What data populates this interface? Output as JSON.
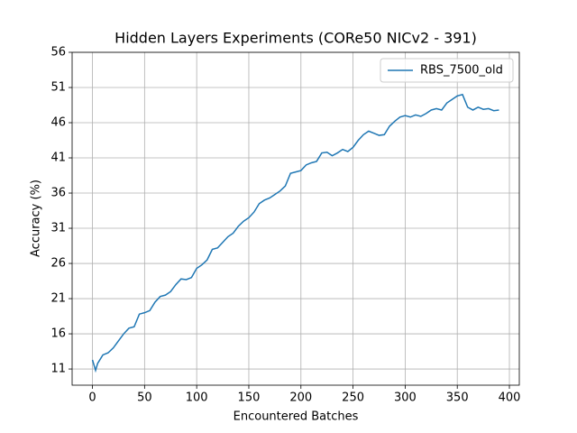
{
  "chart_data": {
    "type": "line",
    "title": "Hidden Layers Experiments (CORe50 NICv2 - 391)",
    "xlabel": "Encountered Batches",
    "ylabel": "Accuracy (%)",
    "x": [
      0,
      3,
      5,
      10,
      15,
      20,
      25,
      30,
      35,
      40,
      45,
      50,
      55,
      60,
      65,
      70,
      75,
      80,
      85,
      90,
      95,
      100,
      105,
      110,
      115,
      120,
      125,
      130,
      135,
      140,
      145,
      150,
      155,
      160,
      165,
      170,
      175,
      180,
      185,
      190,
      195,
      200,
      205,
      210,
      215,
      220,
      225,
      230,
      235,
      240,
      245,
      250,
      255,
      260,
      265,
      270,
      275,
      280,
      285,
      290,
      295,
      300,
      305,
      310,
      315,
      320,
      325,
      330,
      335,
      340,
      345,
      350,
      355,
      360,
      365,
      370,
      375,
      380,
      385,
      390
    ],
    "series": [
      {
        "name": "RBS_7500_old",
        "color": "#1f77b4",
        "values": [
          12.3,
          10.8,
          11.8,
          13,
          13.3,
          14,
          15,
          16,
          16.8,
          17,
          18.8,
          19,
          19.3,
          20.5,
          21.3,
          21.5,
          22,
          23,
          23.8,
          23.7,
          24,
          25.3,
          25.8,
          26.5,
          28,
          28.2,
          29,
          29.8,
          30.3,
          31.3,
          32,
          32.5,
          33.3,
          34.5,
          35,
          35.3,
          35.8,
          36.3,
          37,
          38.8,
          39,
          39.2,
          40,
          40.3,
          40.5,
          41.7,
          41.8,
          41.3,
          41.7,
          42.2,
          41.9,
          42.5,
          43.5,
          44.3,
          44.8,
          44.5,
          44.2,
          44.3,
          45.5,
          46.2,
          46.8,
          47,
          46.8,
          47.1,
          46.9,
          47.3,
          47.8,
          48,
          47.8,
          48.8,
          49.3,
          49.8,
          50,
          48.2,
          47.8,
          48.2,
          47.9,
          48,
          47.7,
          47.8
        ]
      }
    ],
    "xlim": [
      -19.5,
      409.5
    ],
    "ylim": [
      8.7,
      56
    ],
    "xticks": [
      0,
      50,
      100,
      150,
      200,
      250,
      300,
      350,
      400
    ],
    "yticks": [
      11,
      16,
      21,
      26,
      31,
      36,
      41,
      46,
      51,
      56
    ],
    "grid": true,
    "legend": "upper right"
  }
}
